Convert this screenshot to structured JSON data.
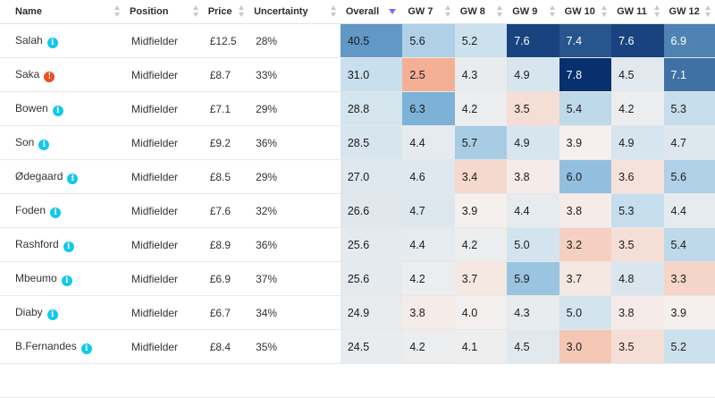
{
  "columns": {
    "name": "Name",
    "position": "Position",
    "price": "Price",
    "uncertainty": "Uncertainty",
    "overall": "Overall",
    "gw": [
      "GW 7",
      "GW 8",
      "GW 9",
      "GW 10",
      "GW 11",
      "GW 12"
    ]
  },
  "sort": {
    "column": "Overall",
    "direction": "descending"
  },
  "colors": {
    "badge_info": "#10c8f0",
    "badge_alert": "#e8501f",
    "sort_arrow": "#7a6cf0"
  },
  "players": [
    {
      "name": "Salah",
      "status": "info",
      "status_glyph": "i",
      "position": "Midfielder",
      "price": "£12.5",
      "uncertainty": "28%",
      "overall": "40.5",
      "gw": [
        "5.6",
        "5.2",
        "7.6",
        "7.4",
        "7.6",
        "6.9"
      ]
    },
    {
      "name": "Saka",
      "status": "alert",
      "status_glyph": "!",
      "position": "Midfielder",
      "price": "£8.7",
      "uncertainty": "33%",
      "overall": "31.0",
      "gw": [
        "2.5",
        "4.3",
        "4.9",
        "7.8",
        "4.5",
        "7.1"
      ]
    },
    {
      "name": "Bowen",
      "status": "info",
      "status_glyph": "i",
      "position": "Midfielder",
      "price": "£7.1",
      "uncertainty": "29%",
      "overall": "28.8",
      "gw": [
        "6.3",
        "4.2",
        "3.5",
        "5.4",
        "4.2",
        "5.3"
      ]
    },
    {
      "name": "Son",
      "status": "info",
      "status_glyph": "i",
      "position": "Midfielder",
      "price": "£9.2",
      "uncertainty": "36%",
      "overall": "28.5",
      "gw": [
        "4.4",
        "5.7",
        "4.9",
        "3.9",
        "4.9",
        "4.7"
      ]
    },
    {
      "name": "Ødegaard",
      "status": "info",
      "status_glyph": "i",
      "position": "Midfielder",
      "price": "£8.5",
      "uncertainty": "29%",
      "overall": "27.0",
      "gw": [
        "4.6",
        "3.4",
        "3.8",
        "6.0",
        "3.6",
        "5.6"
      ]
    },
    {
      "name": "Foden",
      "status": "info",
      "status_glyph": "i",
      "position": "Midfielder",
      "price": "£7.6",
      "uncertainty": "32%",
      "overall": "26.6",
      "gw": [
        "4.7",
        "3.9",
        "4.4",
        "3.8",
        "5.3",
        "4.4"
      ]
    },
    {
      "name": "Rashford",
      "status": "info",
      "status_glyph": "i",
      "position": "Midfielder",
      "price": "£8.9",
      "uncertainty": "36%",
      "overall": "25.6",
      "gw": [
        "4.4",
        "4.2",
        "5.0",
        "3.2",
        "3.5",
        "5.4"
      ]
    },
    {
      "name": "Mbeumo",
      "status": "info",
      "status_glyph": "i",
      "position": "Midfielder",
      "price": "£6.9",
      "uncertainty": "37%",
      "overall": "25.6",
      "gw": [
        "4.2",
        "3.7",
        "5.9",
        "3.7",
        "4.8",
        "3.3"
      ]
    },
    {
      "name": "Diaby",
      "status": "info",
      "status_glyph": "i",
      "position": "Midfielder",
      "price": "£6.7",
      "uncertainty": "34%",
      "overall": "24.9",
      "gw": [
        "3.8",
        "4.0",
        "4.3",
        "5.0",
        "3.8",
        "3.9"
      ]
    },
    {
      "name": "B.Fernandes",
      "status": "info",
      "status_glyph": "i",
      "position": "Midfielder",
      "price": "£8.4",
      "uncertainty": "35%",
      "overall": "24.5",
      "gw": [
        "4.2",
        "4.1",
        "4.5",
        "3.0",
        "3.5",
        "5.2"
      ]
    },
    {
      "name": "",
      "status": "",
      "status_glyph": "",
      "position": "",
      "price": "",
      "uncertainty": "",
      "overall": "",
      "gw": [
        "",
        "",
        "",
        "",
        "",
        ""
      ]
    }
  ]
}
